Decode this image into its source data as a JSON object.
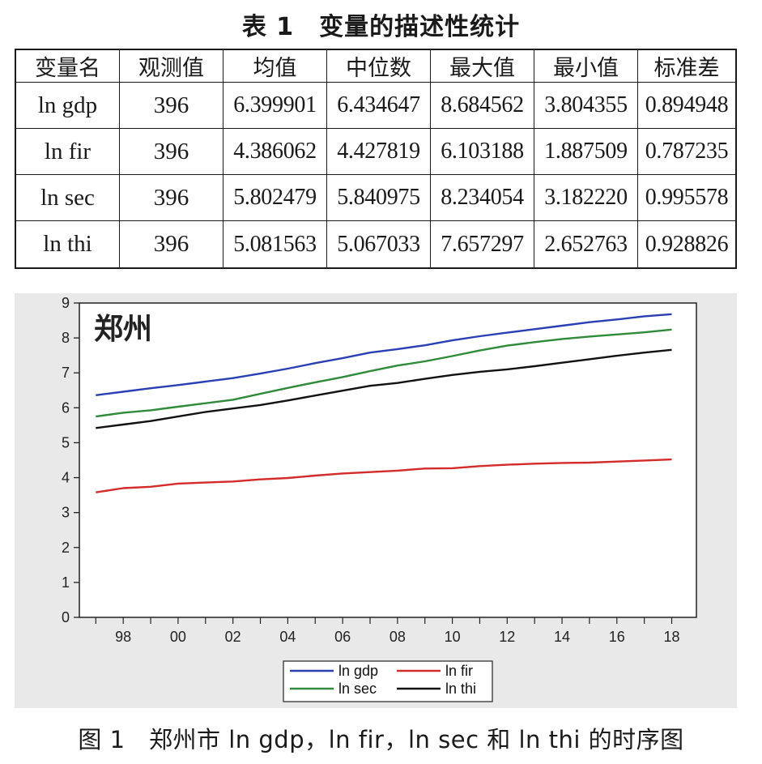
{
  "table": {
    "title": "表 1　变量的描述性统计",
    "headers": [
      "变量名",
      "观测值",
      "均值",
      "中位数",
      "最大值",
      "最小值",
      "标准差"
    ],
    "rows": [
      {
        "name": "ln gdp",
        "obs": "396",
        "mean": "6.399901",
        "median": "6.434647",
        "max": "8.684562",
        "min": "3.804355",
        "sd": "0.894948"
      },
      {
        "name": "ln fir",
        "obs": "396",
        "mean": "4.386062",
        "median": "4.427819",
        "max": "6.103188",
        "min": "1.887509",
        "sd": "0.787235"
      },
      {
        "name": "ln sec",
        "obs": "396",
        "mean": "5.802479",
        "median": "5.840975",
        "max": "8.234054",
        "min": "3.182220",
        "sd": "0.995578"
      },
      {
        "name": "ln thi",
        "obs": "396",
        "mean": "5.081563",
        "median": "5.067033",
        "max": "7.657297",
        "min": "2.652763",
        "sd": "0.928826"
      }
    ]
  },
  "figure": {
    "caption": "图 1　郑州市 ln gdp，ln fir，ln sec 和 ln thi 的时序图"
  },
  "chart_data": {
    "type": "line",
    "title": "郑州",
    "x": [
      1997,
      1998,
      1999,
      2000,
      2001,
      2002,
      2003,
      2004,
      2005,
      2006,
      2007,
      2008,
      2009,
      2010,
      2011,
      2012,
      2013,
      2014,
      2015,
      2016,
      2017,
      2018
    ],
    "xticks": [
      1998,
      2000,
      2002,
      2004,
      2006,
      2008,
      2010,
      2012,
      2014,
      2016,
      2018
    ],
    "xtick_labels": [
      "98",
      "00",
      "02",
      "04",
      "06",
      "08",
      "10",
      "12",
      "14",
      "16",
      "18"
    ],
    "xlim": [
      1996.4,
      2018.9
    ],
    "ylim": [
      0,
      9
    ],
    "yticks": [
      0,
      1,
      2,
      3,
      4,
      5,
      6,
      7,
      8,
      9
    ],
    "ytick_labels": [
      "0",
      "1",
      "2",
      "3",
      "4",
      "5",
      "6",
      "7",
      "8",
      "9"
    ],
    "grid": false,
    "legend": "bottom-center",
    "series": [
      {
        "name": "ln gdp",
        "color": "#2b3fb5",
        "values": [
          6.36,
          6.46,
          6.56,
          6.65,
          6.75,
          6.85,
          6.98,
          7.12,
          7.28,
          7.42,
          7.58,
          7.68,
          7.79,
          7.93,
          8.05,
          8.15,
          8.25,
          8.35,
          8.45,
          8.53,
          8.62,
          8.68
        ]
      },
      {
        "name": "ln fir",
        "color": "#d42a2a",
        "values": [
          3.58,
          3.7,
          3.74,
          3.83,
          3.86,
          3.89,
          3.95,
          3.99,
          4.06,
          4.12,
          4.16,
          4.2,
          4.26,
          4.27,
          4.33,
          4.37,
          4.4,
          4.42,
          4.43,
          4.46,
          4.49,
          4.52
        ]
      },
      {
        "name": "ln sec",
        "color": "#2f8a3a",
        "values": [
          5.75,
          5.86,
          5.93,
          6.03,
          6.13,
          6.23,
          6.4,
          6.57,
          6.73,
          6.88,
          7.05,
          7.21,
          7.33,
          7.48,
          7.64,
          7.78,
          7.88,
          7.97,
          8.04,
          8.1,
          8.16,
          8.24
        ]
      },
      {
        "name": "ln thi",
        "color": "#111111",
        "values": [
          5.42,
          5.52,
          5.62,
          5.75,
          5.88,
          5.98,
          6.08,
          6.21,
          6.35,
          6.49,
          6.63,
          6.71,
          6.83,
          6.94,
          7.03,
          7.1,
          7.19,
          7.29,
          7.39,
          7.49,
          7.58,
          7.66
        ]
      }
    ]
  }
}
